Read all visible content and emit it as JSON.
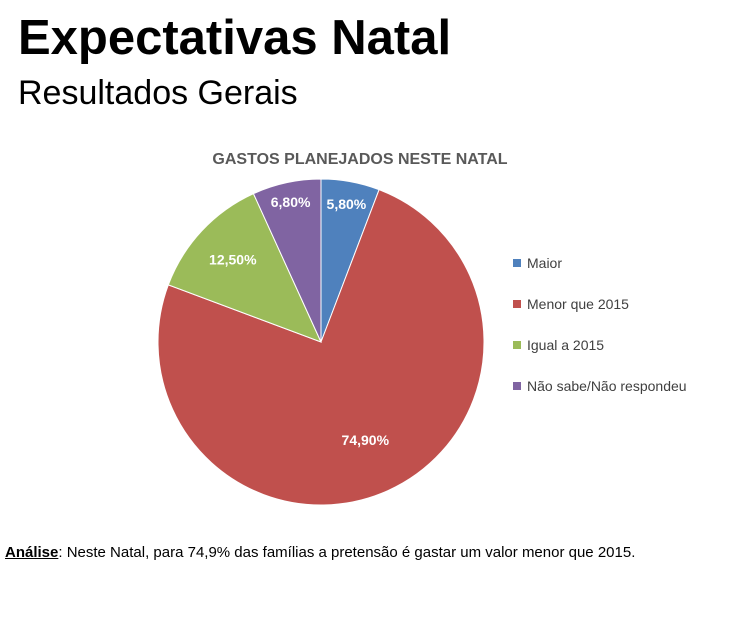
{
  "header": {
    "title": "Expectativas Natal",
    "subtitle": "Resultados Gerais"
  },
  "chart_data": {
    "type": "pie",
    "title": "GASTOS PLANEJADOS NESTE NATAL",
    "categories": [
      "Maior",
      "Menor que 2015",
      "Igual a 2015",
      "Não sabe/Não respondeu"
    ],
    "values": [
      5.8,
      74.9,
      12.5,
      6.8
    ],
    "data_labels": [
      "5,80%",
      "74,90%",
      "12,50%",
      "6,80%"
    ],
    "colors": [
      "#4F81BD",
      "#C0504D",
      "#9BBB59",
      "#8064A2"
    ],
    "legend_position": "right",
    "start_angle": "12 o'clock",
    "direction": "clockwise"
  },
  "analysis": {
    "label": "Análise",
    "separator": ": ",
    "text": "Neste Natal, para 74,9% das famílias a pretensão é gastar um valor menor que 2015."
  }
}
